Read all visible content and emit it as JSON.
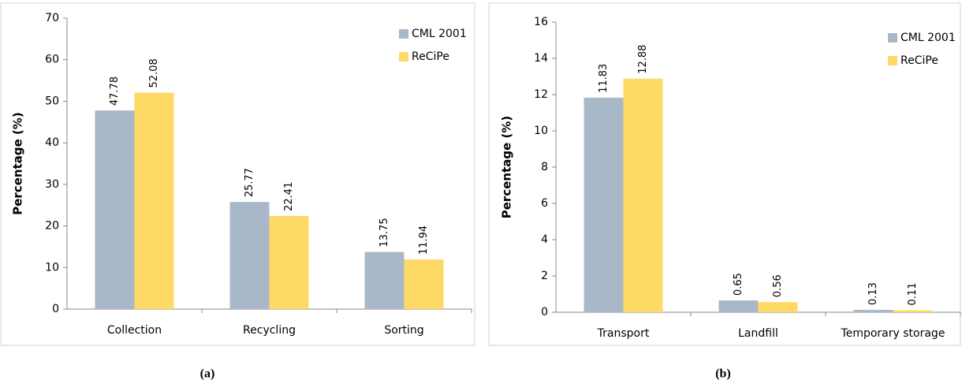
{
  "chart_data": [
    {
      "type": "bar",
      "caption": "(a)",
      "ylabel": "Percentage (%)",
      "categories": [
        "Collection",
        "Recycling",
        "Sorting"
      ],
      "series": [
        {
          "name": "CML 2001",
          "color": "#a9b8c9",
          "values": [
            47.78,
            25.77,
            13.75
          ]
        },
        {
          "name": "ReCiPe",
          "color": "#ffd966",
          "values": [
            52.08,
            22.41,
            11.94
          ]
        }
      ],
      "ylim": [
        0,
        70
      ],
      "yticks": [
        0,
        10,
        20,
        30,
        40,
        50,
        60,
        70
      ],
      "grid": false,
      "legend": "top-right"
    },
    {
      "type": "bar",
      "caption": "(b)",
      "ylabel": "Percentage (%)",
      "categories": [
        "Transport",
        "Landfill",
        "Temporary storage"
      ],
      "series": [
        {
          "name": "CML 2001",
          "color": "#a9b8c9",
          "values": [
            11.83,
            0.65,
            0.13
          ]
        },
        {
          "name": "ReCiPe",
          "color": "#ffd966",
          "values": [
            12.88,
            0.56,
            0.11
          ]
        }
      ],
      "ylim": [
        0,
        16
      ],
      "yticks": [
        0,
        2,
        4,
        6,
        8,
        10,
        12,
        14,
        16
      ],
      "grid": false,
      "legend": "top-right"
    }
  ]
}
